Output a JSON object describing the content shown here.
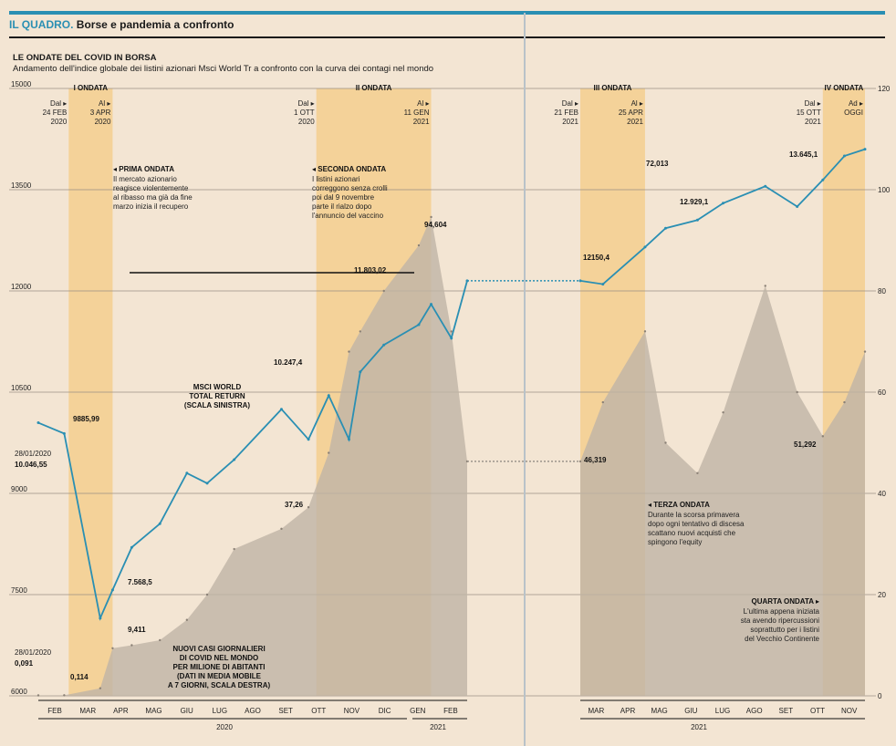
{
  "header": {
    "kicker": "IL QUADRO.",
    "headline": "Borse e pandemia a confronto"
  },
  "chart_title": "LE ONDATE DEL COVID IN BORSA",
  "chart_subtitle": "Andamento dell'indice globale dei listini azionari Msci World Tr a confronto con la curva dei contagi nel mondo",
  "colors": {
    "msci": "#2a8fb3",
    "cases_fill": "#c8bdae",
    "wave_band": "#f4cf92",
    "background": "#f3e5d3"
  },
  "waves": [
    {
      "name": "I ONDATA",
      "from_label": "Dal",
      "from_date": "24 FEB\n2020",
      "to_label": "Al",
      "to_date": "3 APR\n2020"
    },
    {
      "name": "II ONDATA",
      "from_label": "Dal",
      "from_date": "1 OTT\n2020",
      "to_label": "Al",
      "to_date": "11 GEN\n2021"
    },
    {
      "name": "III ONDATA",
      "from_label": "Dal",
      "from_date": "21 FEB\n2021",
      "to_label": "Al",
      "to_date": "25 APR\n2021"
    },
    {
      "name": "IV ONDATA",
      "from_label": "Dal",
      "from_date": "15 OTT\n2021",
      "to_label": "Ad",
      "to_date": "OGGI"
    }
  ],
  "annotations": [
    {
      "title": "PRIMA ONDATA",
      "text": "Il mercato azionario\nreagisce violentemente\nal ribasso ma già da fine\nmarzo inizia il recupero"
    },
    {
      "title": "SECONDA ONDATA",
      "text": "I listini azionari\ncorreggono senza crolli\npoi dal 9 novembre\nparte il rialzo dopo\nl'annuncio del vaccino"
    },
    {
      "title": "TERZA ONDATA",
      "text": "Durante la scorsa primavera\ndopo ogni tentativo di discesa\nscattano nuovi acquisti che\nspingono l'equity"
    },
    {
      "title": "QUARTA ONDATA",
      "text": "L'ultima appena iniziata\nsta avendo ripercussioni\nsoprattutto per i listini\ndel Vecchio Continente"
    }
  ],
  "series_labels": {
    "msci": "MSCI WORLD\nTOTAL RETURN\n(SCALA SINISTRA)",
    "cases": "NUOVI CASI GIORNALIERI\nDI COVID NEL MONDO\nPER MILIONE DI ABITANTI\n(DATI IN MEDIA MOBILE\nA 7 GIORNI, SCALA DESTRA)"
  },
  "start_labels": {
    "msci_date": "28/01/2020",
    "msci_value": "10.046,55",
    "cases_date": "28/01/2020",
    "cases_value": "0,091"
  },
  "value_labels": {
    "msci": [
      "9885,99",
      "7.568,5",
      "10.247,4",
      "11.803,02",
      "12150,4",
      "12.929,1",
      "13.645,1"
    ],
    "cases": [
      "0,114",
      "9,411",
      "37,26",
      "94,604",
      "46,319",
      "72,013",
      "51,292"
    ]
  },
  "axes": {
    "left_ticks": [
      "15000",
      "13500",
      "12000",
      "10500",
      "9000",
      "7500",
      "6000"
    ],
    "right_ticks": [
      "120",
      "100",
      "80",
      "60",
      "40",
      "20",
      "0"
    ],
    "months_left": [
      "FEB",
      "MAR",
      "APR",
      "MAG",
      "GIU",
      "LUG",
      "AGO",
      "SET",
      "OTT",
      "NOV",
      "DIC",
      "GEN",
      "FEB"
    ],
    "months_right": [
      "MAR",
      "APR",
      "MAG",
      "GIU",
      "LUG",
      "AGO",
      "SET",
      "OTT",
      "NOV"
    ],
    "years_left": [
      "2020",
      "2021"
    ],
    "years_right": [
      "2021"
    ]
  },
  "chart_data": {
    "type": "line",
    "title": "LE ONDATE DEL COVID IN BORSA",
    "left_axis": {
      "label": "",
      "ylim": [
        6000,
        15000
      ],
      "ticks": [
        6000,
        7500,
        9000,
        10500,
        12000,
        13500,
        15000
      ]
    },
    "right_axis": {
      "label": "",
      "ylim": [
        0,
        120
      ],
      "ticks": [
        0,
        20,
        40,
        60,
        80,
        100,
        120
      ]
    },
    "panels": [
      {
        "x": [
          "2020-01-28",
          "2020-02-20",
          "2020-03-23",
          "2020-04-03",
          "2020-04-20",
          "2020-05-15",
          "2020-06-08",
          "2020-06-26",
          "2020-07-20",
          "2020-08-31",
          "2020-09-24",
          "2020-10-12",
          "2020-10-30",
          "2020-11-09",
          "2020-11-30",
          "2020-12-31",
          "2021-01-11",
          "2021-01-29",
          "2021-02-12"
        ],
        "series": [
          {
            "name": "MSCI WORLD TOTAL RETURN",
            "axis": "left",
            "values": [
              10046.55,
              9885.99,
              7150,
              7568.5,
              8200,
              8550,
              9300,
              9150,
              9500,
              10247.4,
              9800,
              10450,
              9800,
              10800,
              11200,
              11500,
              11803.02,
              11300,
              12150
            ]
          },
          {
            "name": "NUOVI CASI GIORNALIERI DI COVID NEL MONDO",
            "axis": "right",
            "values": [
              0.091,
              0.114,
              1.5,
              9.411,
              10,
              11,
              15,
              20,
              29,
              33,
              37.26,
              48,
              68,
              72,
              80,
              89,
              94.604,
              72,
              46.319
            ]
          }
        ]
      },
      {
        "x": [
          "2021-02-21",
          "2021-03-15",
          "2021-04-25",
          "2021-05-15",
          "2021-06-15",
          "2021-07-10",
          "2021-08-20",
          "2021-09-20",
          "2021-10-15",
          "2021-11-05",
          "2021-11-25"
        ],
        "series": [
          {
            "name": "MSCI WORLD TOTAL RETURN",
            "axis": "left",
            "values": [
              12150.4,
              12100,
              12650,
              12929.1,
              13050,
              13300,
              13550,
              13250,
              13645.1,
              14000,
              14100
            ]
          },
          {
            "name": "NUOVI CASI GIORNALIERI DI COVID NEL MONDO",
            "axis": "right",
            "values": [
              46.319,
              58,
              72.013,
              50,
              44,
              56,
              81,
              60,
              51.292,
              58,
              68
            ]
          }
        ]
      }
    ]
  }
}
